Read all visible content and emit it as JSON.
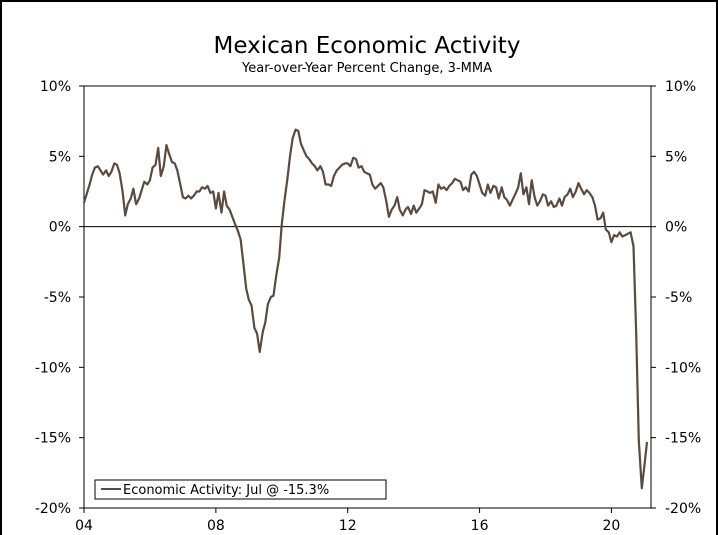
{
  "chart_data": {
    "type": "line",
    "title": "Mexican Economic Activity",
    "subtitle": "Year-over-Year Percent Change, 3-MMA",
    "xlabel": "",
    "ylabel": "",
    "xlim": [
      2004.0,
      2021.2
    ],
    "ylim": [
      -20,
      10
    ],
    "x_ticks": [
      {
        "value": 2004,
        "label": "04"
      },
      {
        "value": 2008,
        "label": "08"
      },
      {
        "value": 2012,
        "label": "12"
      },
      {
        "value": 2016,
        "label": "16"
      },
      {
        "value": 2020,
        "label": "20"
      }
    ],
    "y_ticks": [
      {
        "value": 10,
        "label": "10%"
      },
      {
        "value": 5,
        "label": "5%"
      },
      {
        "value": 0,
        "label": "0%"
      },
      {
        "value": -5,
        "label": "-5%"
      },
      {
        "value": -10,
        "label": "-10%"
      },
      {
        "value": -15,
        "label": "-15%"
      },
      {
        "value": -20,
        "label": "-20%"
      }
    ],
    "grid": false,
    "zero_line": true,
    "legend_position": "bottom-left",
    "series": [
      {
        "name": "Economic Activity: Jul @ -15.3%",
        "color": "#5a4a3f",
        "points": [
          [
            2004.0,
            1.7
          ],
          [
            2004.08,
            2.3
          ],
          [
            2004.17,
            3.0
          ],
          [
            2004.25,
            3.7
          ],
          [
            2004.33,
            4.2
          ],
          [
            2004.42,
            4.3
          ],
          [
            2004.5,
            4.0
          ],
          [
            2004.58,
            3.7
          ],
          [
            2004.67,
            4.0
          ],
          [
            2004.75,
            3.6
          ],
          [
            2004.83,
            3.9
          ],
          [
            2004.92,
            4.5
          ],
          [
            2005.0,
            4.4
          ],
          [
            2005.08,
            3.8
          ],
          [
            2005.17,
            2.5
          ],
          [
            2005.25,
            0.8
          ],
          [
            2005.33,
            1.6
          ],
          [
            2005.42,
            2.0
          ],
          [
            2005.5,
            2.7
          ],
          [
            2005.58,
            1.6
          ],
          [
            2005.67,
            2.0
          ],
          [
            2005.75,
            2.6
          ],
          [
            2005.83,
            3.2
          ],
          [
            2005.92,
            3.0
          ],
          [
            2006.0,
            3.3
          ],
          [
            2006.08,
            4.2
          ],
          [
            2006.17,
            4.4
          ],
          [
            2006.25,
            5.6
          ],
          [
            2006.33,
            3.6
          ],
          [
            2006.42,
            4.3
          ],
          [
            2006.5,
            5.8
          ],
          [
            2006.58,
            5.2
          ],
          [
            2006.67,
            4.6
          ],
          [
            2006.75,
            4.5
          ],
          [
            2006.83,
            4.0
          ],
          [
            2006.92,
            3.0
          ],
          [
            2007.0,
            2.1
          ],
          [
            2007.08,
            2.0
          ],
          [
            2007.17,
            2.2
          ],
          [
            2007.25,
            2.0
          ],
          [
            2007.33,
            2.2
          ],
          [
            2007.42,
            2.5
          ],
          [
            2007.5,
            2.5
          ],
          [
            2007.58,
            2.8
          ],
          [
            2007.67,
            2.7
          ],
          [
            2007.75,
            2.9
          ],
          [
            2007.83,
            2.4
          ],
          [
            2007.92,
            2.5
          ],
          [
            2008.0,
            1.3
          ],
          [
            2008.08,
            2.4
          ],
          [
            2008.17,
            1.0
          ],
          [
            2008.25,
            2.5
          ],
          [
            2008.33,
            1.5
          ],
          [
            2008.42,
            1.2
          ],
          [
            2008.5,
            0.7
          ],
          [
            2008.58,
            0.2
          ],
          [
            2008.67,
            -0.3
          ],
          [
            2008.75,
            -0.9
          ],
          [
            2008.83,
            -2.5
          ],
          [
            2008.92,
            -4.4
          ],
          [
            2009.0,
            -5.2
          ],
          [
            2009.08,
            -5.6
          ],
          [
            2009.17,
            -7.2
          ],
          [
            2009.25,
            -7.6
          ],
          [
            2009.33,
            -8.9
          ],
          [
            2009.42,
            -7.5
          ],
          [
            2009.5,
            -6.8
          ],
          [
            2009.58,
            -5.5
          ],
          [
            2009.67,
            -5.0
          ],
          [
            2009.75,
            -4.9
          ],
          [
            2009.83,
            -3.5
          ],
          [
            2009.92,
            -2.2
          ],
          [
            2010.0,
            0.2
          ],
          [
            2010.08,
            1.8
          ],
          [
            2010.17,
            3.4
          ],
          [
            2010.25,
            5.0
          ],
          [
            2010.33,
            6.3
          ],
          [
            2010.42,
            6.9
          ],
          [
            2010.5,
            6.8
          ],
          [
            2010.58,
            5.9
          ],
          [
            2010.67,
            5.4
          ],
          [
            2010.75,
            5.0
          ],
          [
            2010.83,
            4.8
          ],
          [
            2010.92,
            4.5
          ],
          [
            2011.0,
            4.3
          ],
          [
            2011.08,
            4.0
          ],
          [
            2011.17,
            4.3
          ],
          [
            2011.25,
            3.9
          ],
          [
            2011.33,
            3.0
          ],
          [
            2011.42,
            3.0
          ],
          [
            2011.5,
            2.9
          ],
          [
            2011.58,
            3.6
          ],
          [
            2011.67,
            4.0
          ],
          [
            2011.75,
            4.2
          ],
          [
            2011.83,
            4.4
          ],
          [
            2011.92,
            4.5
          ],
          [
            2012.0,
            4.5
          ],
          [
            2012.08,
            4.3
          ],
          [
            2012.17,
            4.9
          ],
          [
            2012.25,
            4.8
          ],
          [
            2012.33,
            4.2
          ],
          [
            2012.42,
            4.3
          ],
          [
            2012.5,
            3.9
          ],
          [
            2012.58,
            3.8
          ],
          [
            2012.67,
            3.7
          ],
          [
            2012.75,
            3.0
          ],
          [
            2012.83,
            2.7
          ],
          [
            2012.92,
            2.9
          ],
          [
            2013.0,
            3.1
          ],
          [
            2013.08,
            2.8
          ],
          [
            2013.17,
            1.8
          ],
          [
            2013.25,
            0.7
          ],
          [
            2013.33,
            1.2
          ],
          [
            2013.42,
            1.5
          ],
          [
            2013.5,
            2.1
          ],
          [
            2013.58,
            1.2
          ],
          [
            2013.67,
            0.8
          ],
          [
            2013.75,
            1.2
          ],
          [
            2013.83,
            1.4
          ],
          [
            2013.92,
            0.9
          ],
          [
            2014.0,
            1.5
          ],
          [
            2014.08,
            1.0
          ],
          [
            2014.17,
            1.3
          ],
          [
            2014.25,
            1.6
          ],
          [
            2014.33,
            2.6
          ],
          [
            2014.42,
            2.5
          ],
          [
            2014.5,
            2.4
          ],
          [
            2014.58,
            2.5
          ],
          [
            2014.67,
            1.7
          ],
          [
            2014.75,
            3.0
          ],
          [
            2014.83,
            2.7
          ],
          [
            2014.92,
            2.8
          ],
          [
            2015.0,
            2.6
          ],
          [
            2015.08,
            2.9
          ],
          [
            2015.17,
            3.1
          ],
          [
            2015.25,
            3.4
          ],
          [
            2015.33,
            3.3
          ],
          [
            2015.42,
            3.2
          ],
          [
            2015.5,
            2.6
          ],
          [
            2015.58,
            2.8
          ],
          [
            2015.67,
            2.5
          ],
          [
            2015.75,
            3.7
          ],
          [
            2015.83,
            3.9
          ],
          [
            2015.92,
            3.6
          ],
          [
            2016.0,
            3.0
          ],
          [
            2016.08,
            2.4
          ],
          [
            2016.17,
            2.2
          ],
          [
            2016.25,
            3.0
          ],
          [
            2016.33,
            2.4
          ],
          [
            2016.42,
            2.9
          ],
          [
            2016.5,
            2.8
          ],
          [
            2016.58,
            2.0
          ],
          [
            2016.67,
            2.8
          ],
          [
            2016.75,
            2.1
          ],
          [
            2016.83,
            1.9
          ],
          [
            2016.92,
            1.5
          ],
          [
            2017.0,
            1.9
          ],
          [
            2017.08,
            2.3
          ],
          [
            2017.17,
            2.8
          ],
          [
            2017.25,
            3.8
          ],
          [
            2017.33,
            2.3
          ],
          [
            2017.42,
            2.8
          ],
          [
            2017.5,
            1.6
          ],
          [
            2017.58,
            3.3
          ],
          [
            2017.67,
            2.1
          ],
          [
            2017.75,
            1.5
          ],
          [
            2017.83,
            1.8
          ],
          [
            2017.92,
            2.3
          ],
          [
            2018.0,
            2.2
          ],
          [
            2018.08,
            1.5
          ],
          [
            2018.17,
            1.8
          ],
          [
            2018.25,
            1.4
          ],
          [
            2018.33,
            1.5
          ],
          [
            2018.42,
            2.0
          ],
          [
            2018.5,
            1.5
          ],
          [
            2018.58,
            2.1
          ],
          [
            2018.67,
            2.3
          ],
          [
            2018.75,
            2.7
          ],
          [
            2018.83,
            2.1
          ],
          [
            2018.92,
            2.5
          ],
          [
            2019.0,
            3.1
          ],
          [
            2019.08,
            2.7
          ],
          [
            2019.17,
            2.3
          ],
          [
            2019.25,
            2.6
          ],
          [
            2019.33,
            2.4
          ],
          [
            2019.42,
            2.1
          ],
          [
            2019.5,
            1.5
          ],
          [
            2019.58,
            0.5
          ],
          [
            2019.67,
            0.6
          ],
          [
            2019.75,
            1.0
          ],
          [
            2019.83,
            -0.2
          ],
          [
            2019.92,
            -0.4
          ],
          [
            2020.0,
            -1.1
          ],
          [
            2020.08,
            -0.6
          ],
          [
            2020.17,
            -0.7
          ],
          [
            2020.25,
            -0.4
          ],
          [
            2020.33,
            -0.7
          ],
          [
            2020.42,
            -0.6
          ],
          [
            2020.5,
            -0.5
          ],
          [
            2020.58,
            -0.4
          ],
          [
            2020.67,
            -1.4
          ],
          [
            2020.75,
            -7.6
          ],
          [
            2020.83,
            -15.2
          ],
          [
            2020.92,
            -18.6
          ],
          [
            2021.0,
            -17.0
          ],
          [
            2021.08,
            -15.3
          ]
        ]
      }
    ]
  }
}
